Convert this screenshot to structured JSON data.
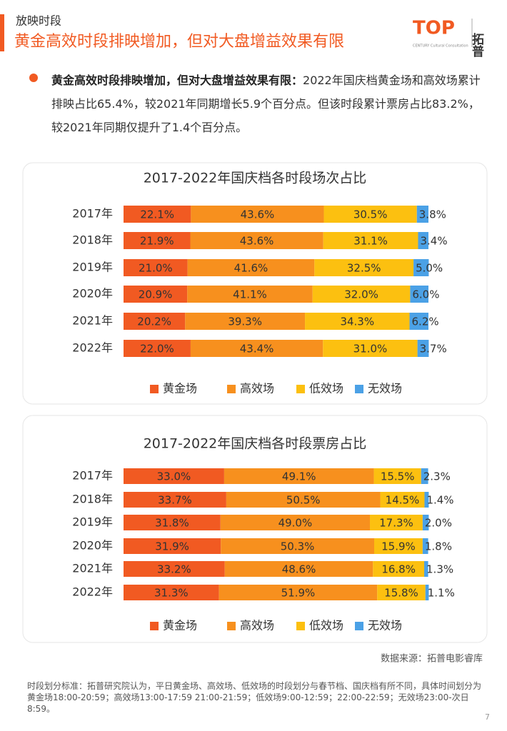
{
  "header": {
    "section": "放映时段",
    "title": "黄金高效时段排映增加，但对大盘增益效果有限"
  },
  "logo": {
    "mark": "TOP",
    "name": "拓普",
    "tagline": "CENTURY Cultural Consultation"
  },
  "bullet": {
    "lead": "黄金高效时段排映增加，但对大盘增益效果有限：",
    "text": "2022年国庆档黄金场和高效场累计排映占比65.4%，较2021年同期增长5.9个百分点。但该时段累计票房占比83.2%，较2021年同期仅提升了1.4个百分点。"
  },
  "chart_data": [
    {
      "type": "bar",
      "orientation": "horizontal",
      "stacked": true,
      "title": "2017-2022年国庆档各时段场次占比",
      "categories": [
        "2017年",
        "2018年",
        "2019年",
        "2020年",
        "2021年",
        "2022年"
      ],
      "xlim": [
        0,
        100
      ],
      "series": [
        {
          "name": "黄金场",
          "color": "#f15a22",
          "values": [
            22.1,
            21.9,
            21.0,
            20.9,
            20.2,
            22.0
          ],
          "value_labels": [
            "22.1%",
            "21.9%",
            "21.0%",
            "20.9%",
            "20.2%",
            "22.0%"
          ]
        },
        {
          "name": "高效场",
          "color": "#f7901e",
          "values": [
            43.6,
            43.6,
            41.6,
            41.1,
            39.3,
            43.4
          ],
          "value_labels": [
            "43.6%",
            "43.6%",
            "41.6%",
            "41.1%",
            "39.3%",
            "43.4%"
          ]
        },
        {
          "name": "低效场",
          "color": "#fcc010",
          "values": [
            30.5,
            31.1,
            32.5,
            32.0,
            34.3,
            31.0
          ],
          "value_labels": [
            "30.5%",
            "31.1%",
            "32.5%",
            "32.0%",
            "34.3%",
            "31.0%"
          ]
        },
        {
          "name": "无效场",
          "color": "#4ba1e6",
          "values": [
            3.8,
            3.4,
            5.0,
            6.0,
            6.2,
            3.7
          ],
          "value_labels": [
            "3.8%",
            "3.4%",
            "5.0%",
            "6.0%",
            "6.2%",
            "3.7%"
          ]
        }
      ]
    },
    {
      "type": "bar",
      "orientation": "horizontal",
      "stacked": true,
      "title": "2017-2022年国庆档各时段票房占比",
      "categories": [
        "2017年",
        "2018年",
        "2019年",
        "2020年",
        "2021年",
        "2022年"
      ],
      "xlim": [
        0,
        100
      ],
      "series": [
        {
          "name": "黄金场",
          "color": "#f15a22",
          "values": [
            33.0,
            33.7,
            31.8,
            31.9,
            33.2,
            31.3
          ],
          "value_labels": [
            "33.0%",
            "33.7%",
            "31.8%",
            "31.9%",
            "33.2%",
            "31.3%"
          ]
        },
        {
          "name": "高效场",
          "color": "#f7901e",
          "values": [
            49.1,
            50.5,
            49.0,
            50.3,
            48.6,
            51.9
          ],
          "value_labels": [
            "49.1%",
            "50.5%",
            "49.0%",
            "50.3%",
            "48.6%",
            "51.9%"
          ]
        },
        {
          "name": "低效场",
          "color": "#fcc010",
          "values": [
            15.5,
            14.5,
            17.3,
            15.9,
            16.8,
            15.8
          ],
          "value_labels": [
            "15.5%",
            "14.5%",
            "17.3%",
            "15.9%",
            "16.8%",
            "15.8%"
          ]
        },
        {
          "name": "无效场",
          "color": "#4ba1e6",
          "values": [
            2.3,
            1.4,
            2.0,
            1.8,
            1.3,
            1.1
          ],
          "value_labels": [
            "2.3%",
            "1.4%",
            "2.0%",
            "1.8%",
            "1.3%",
            "1.1%"
          ]
        }
      ]
    }
  ],
  "source": "数据来源：拓普电影睿库",
  "footnote": "时段划分标准：拓普研究院认为，平日黄金场、高效场、低效场的时段划分与春节档、国庆档有所不同，具体时间划分为黄金场18:00-20:59；高效场13:00-17:59 21:00-21:59；低效场9:00-12:59；22:00-22:59；无效场23:00-次日8:59。",
  "page": "7"
}
